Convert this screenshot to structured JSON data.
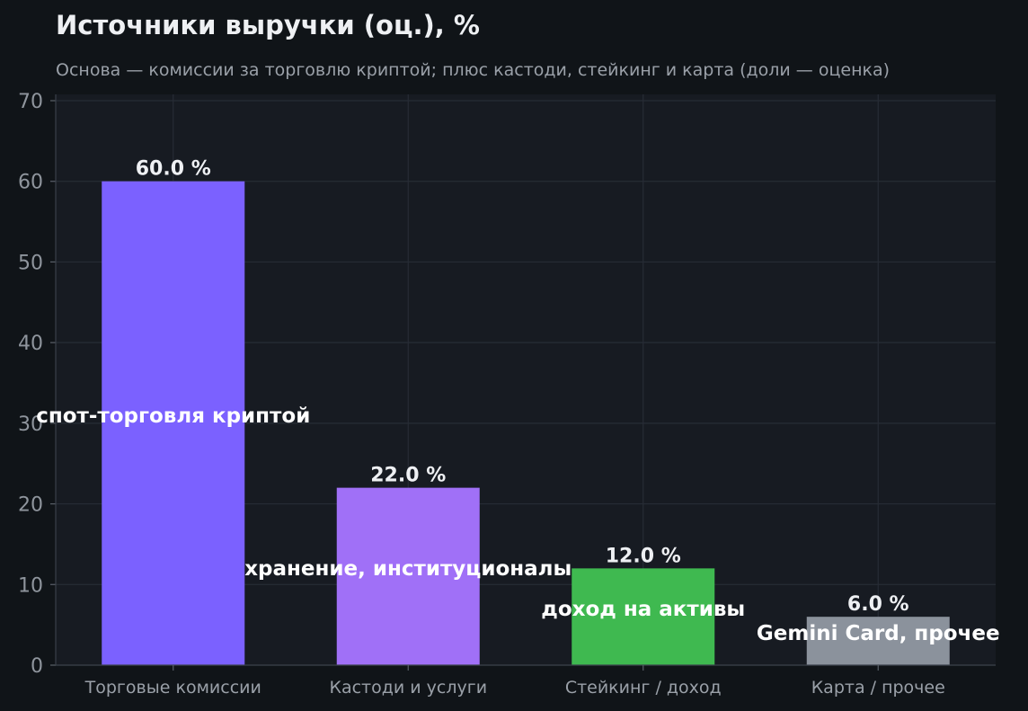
{
  "chart_data": {
    "type": "bar",
    "title": "Источники выручки (оц.), %",
    "subtitle": "Основа — комиссии за торговлю криптой; плюс кастоди, стейкинг и карта (доли — оценка)",
    "categories": [
      "Торговые комиссии",
      "Кастоди и услуги",
      "Стейкинг / доход",
      "Карта / прочее"
    ],
    "values": [
      60.0,
      22.0,
      12.0,
      6.0
    ],
    "value_labels": [
      "60.0 %",
      "22.0 %",
      "12.0 %",
      "6.0 %"
    ],
    "bar_annotations": [
      "спот-торговля криптой",
      "хранение, институционалы",
      "доход на активы",
      "Gemini Card, прочее"
    ],
    "colors": [
      "#7b61ff",
      "#a070f7",
      "#3fb950",
      "#8b929c"
    ],
    "ylim": [
      0,
      70
    ],
    "yticks": [
      0,
      10,
      20,
      30,
      40,
      50,
      60,
      70
    ],
    "xlabel": "",
    "ylabel": "",
    "grid": true
  }
}
